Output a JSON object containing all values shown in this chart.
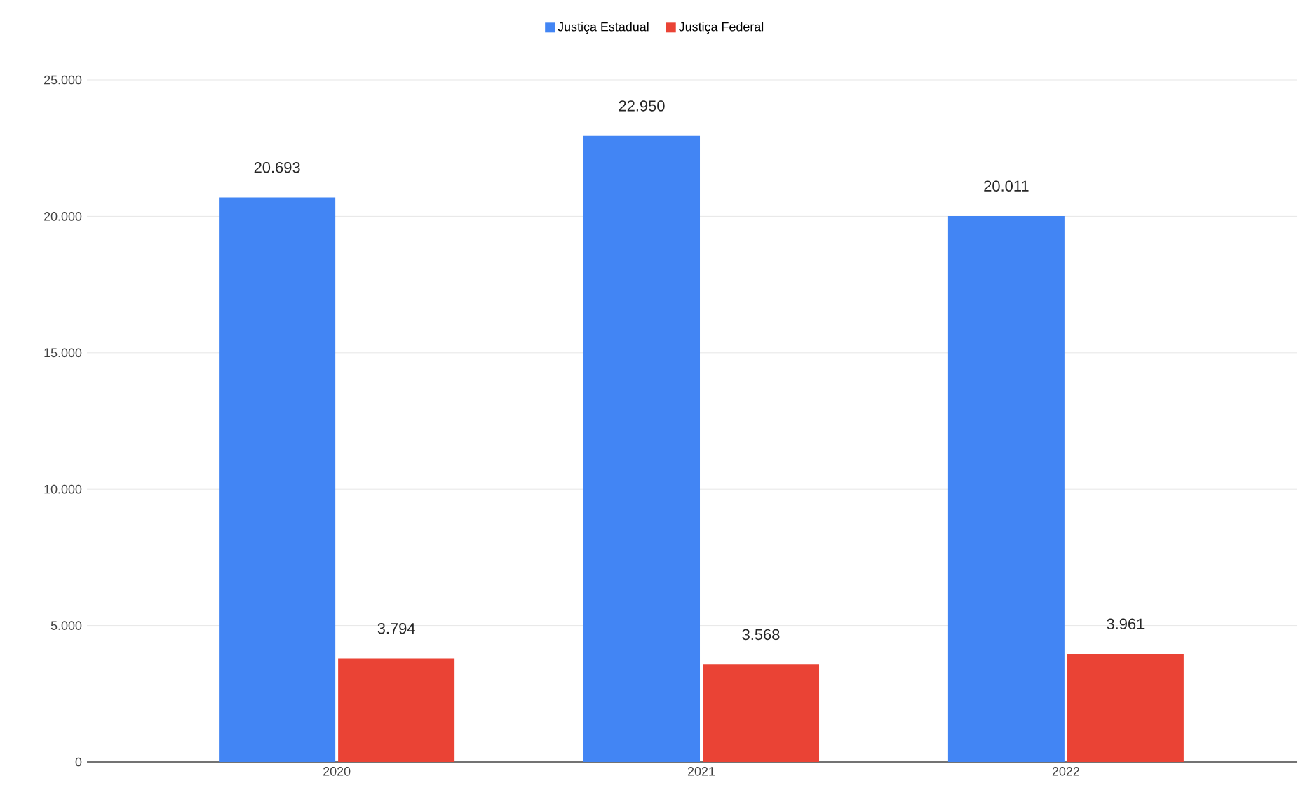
{
  "chart_data": {
    "type": "bar",
    "categories": [
      "2020",
      "2021",
      "2022"
    ],
    "series": [
      {
        "name": "Justiça Estadual",
        "color": "#4285f4",
        "values": [
          20693,
          22950,
          20011
        ],
        "value_labels": [
          "20.693",
          "22.950",
          "20.011"
        ]
      },
      {
        "name": "Justiça Federal",
        "color": "#ea4335",
        "values": [
          3794,
          3568,
          3961
        ],
        "value_labels": [
          "3.794",
          "3.568",
          "3.961"
        ]
      }
    ],
    "ylim": [
      0,
      25000
    ],
    "yticks": [
      {
        "value": 0,
        "label": "0"
      },
      {
        "value": 5000,
        "label": "5.000"
      },
      {
        "value": 10000,
        "label": "10.000"
      },
      {
        "value": 15000,
        "label": "15.000"
      },
      {
        "value": 20000,
        "label": "20.000"
      },
      {
        "value": 25000,
        "label": "25.000"
      }
    ],
    "grid": "y",
    "legend": "top"
  }
}
